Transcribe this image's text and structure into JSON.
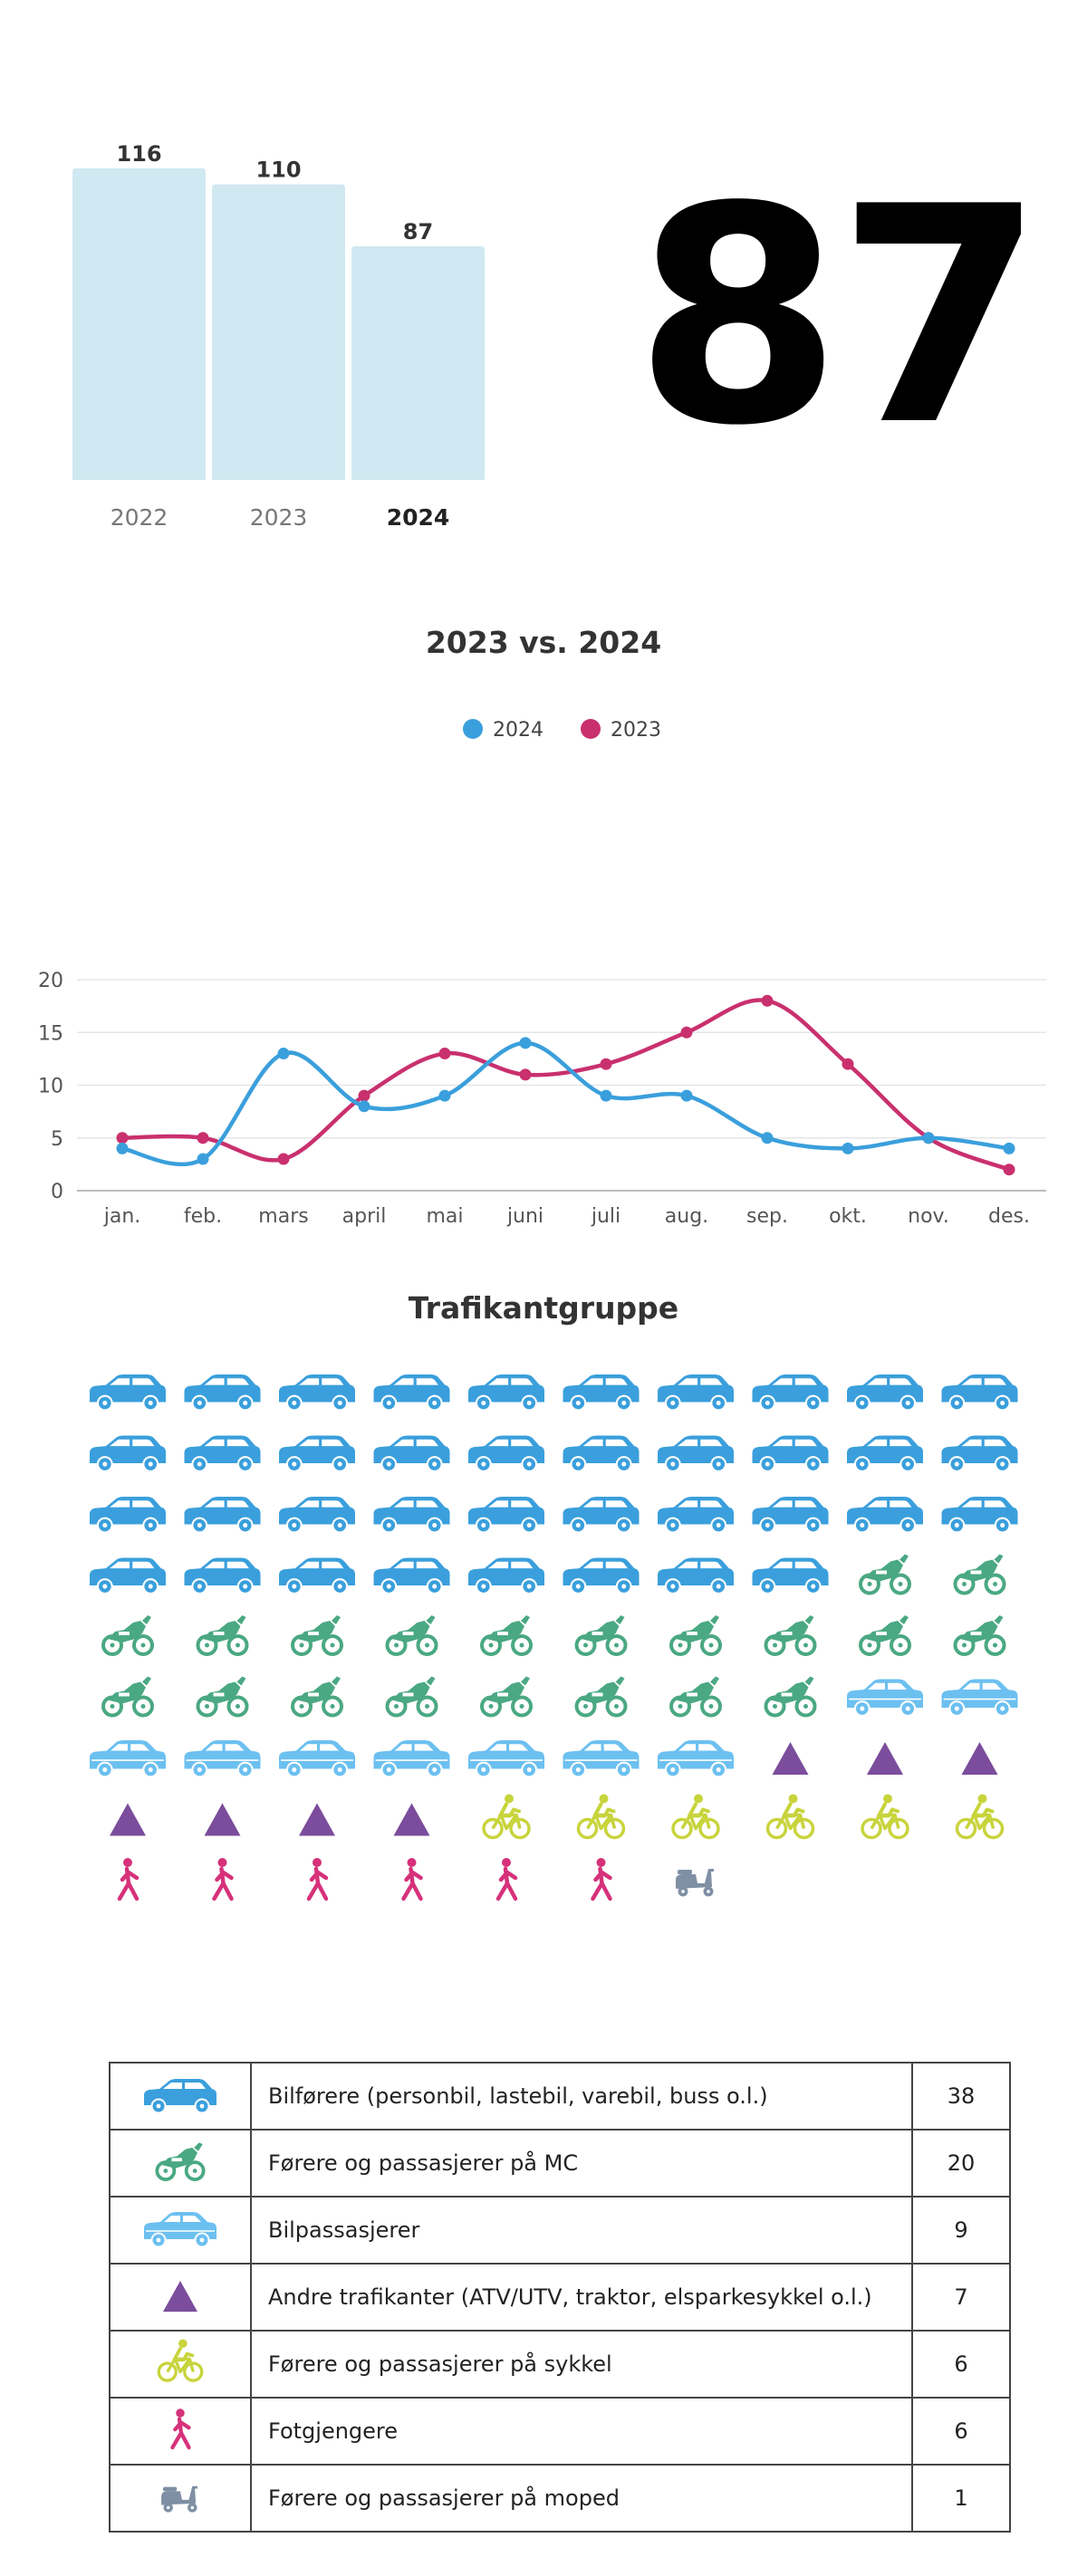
{
  "summary": {
    "big_number": "87"
  },
  "colors": {
    "bar": "#d0e8f1",
    "series_2024": "#3a9fdc",
    "series_2023": "#c9306e",
    "car": "#3a9fdc",
    "motorcycle": "#4aa883",
    "passenger_car": "#6cc0f0",
    "other": "#7b4d9c",
    "bicycle": "#c8d43c",
    "pedestrian": "#d6317a",
    "moped": "#7f8fa4"
  },
  "chart_data": [
    {
      "type": "bar",
      "categories": [
        "2022",
        "2023",
        "2024"
      ],
      "values": [
        116,
        110,
        87
      ],
      "highlight": "2024",
      "ylim": [
        0,
        120
      ]
    },
    {
      "type": "line",
      "title": "2023 vs. 2024",
      "categories": [
        "jan.",
        "feb.",
        "mars",
        "april",
        "mai",
        "juni",
        "juli",
        "aug.",
        "sep.",
        "okt.",
        "nov.",
        "des."
      ],
      "series": [
        {
          "name": "2024",
          "values": [
            4,
            3,
            13,
            8,
            9,
            14,
            9,
            9,
            5,
            4,
            5,
            4
          ]
        },
        {
          "name": "2023",
          "values": [
            5,
            5,
            3,
            9,
            13,
            11,
            12,
            15,
            18,
            12,
            5,
            2
          ]
        }
      ],
      "yticks": [
        "0",
        "5",
        "10",
        "15",
        "20"
      ],
      "ylim": [
        0,
        20
      ],
      "legend": "top-center",
      "grid": true
    }
  ],
  "waffle": {
    "title": "Trafikantgruppe",
    "columns": 10,
    "groups": [
      {
        "key": "car",
        "label": "Bilførere (personbil, lastebil, varebil, buss o.l.)",
        "count": 38,
        "count_label": "38"
      },
      {
        "key": "motorcycle",
        "label": "Førere og passasjerer på MC",
        "count": 20,
        "count_label": "20"
      },
      {
        "key": "passenger_car",
        "label": "Bilpassasjerer",
        "count": 9,
        "count_label": "9"
      },
      {
        "key": "other",
        "label": "Andre trafikanter (ATV/UTV, traktor, elsparkesykkel o.l.)",
        "count": 7,
        "count_label": "7"
      },
      {
        "key": "bicycle",
        "label": "Førere og passasjerer på sykkel",
        "count": 6,
        "count_label": "6"
      },
      {
        "key": "pedestrian",
        "label": "Fotgjengere",
        "count": 6,
        "count_label": "6"
      },
      {
        "key": "moped",
        "label": "Førere og passasjerer på moped",
        "count": 1,
        "count_label": "1"
      }
    ]
  }
}
